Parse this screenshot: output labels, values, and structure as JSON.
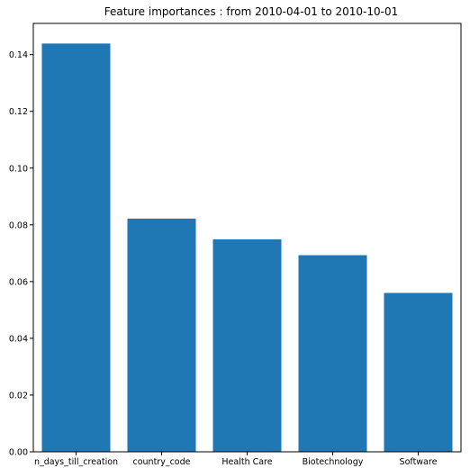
{
  "chart_data": {
    "type": "bar",
    "title": "Feature importances : from 2010-04-01 to 2010-10-01",
    "xlabel": "",
    "ylabel": "",
    "categories": [
      "n_days_till_creation",
      "country_code",
      "Health Care",
      "Biotechnology",
      "Software"
    ],
    "values": [
      0.1439,
      0.0822,
      0.0749,
      0.0693,
      0.056
    ],
    "ylim": [
      0.0,
      0.151
    ],
    "yticks": [
      "0.00",
      "0.02",
      "0.04",
      "0.06",
      "0.08",
      "0.10",
      "0.12",
      "0.14"
    ],
    "grid": false,
    "bar_color": "#1f77b4",
    "axis_color": "#000000",
    "background_color": "#ffffff"
  }
}
